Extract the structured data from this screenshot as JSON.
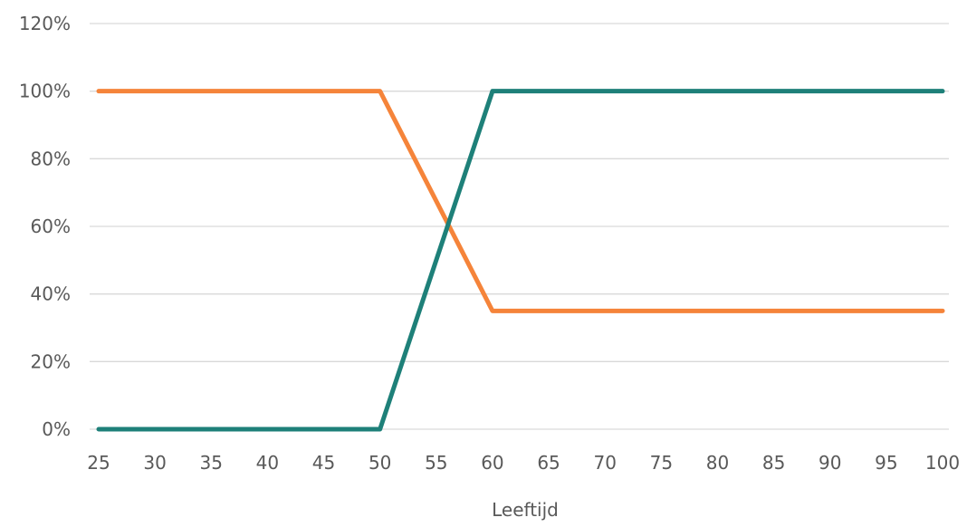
{
  "chart_data": {
    "type": "line",
    "title": "",
    "xlabel": "Leeftijd",
    "ylabel": "",
    "x": [
      25,
      30,
      35,
      40,
      45,
      50,
      55,
      60,
      65,
      70,
      75,
      80,
      85,
      90,
      95,
      100
    ],
    "x_tick_labels": [
      "25",
      "30",
      "35",
      "40",
      "45",
      "50",
      "55",
      "60",
      "65",
      "70",
      "75",
      "80",
      "85",
      "90",
      "95",
      "100"
    ],
    "xlim": [
      25,
      100
    ],
    "ylim": [
      0,
      120
    ],
    "y_ticks": [
      0,
      20,
      40,
      60,
      80,
      100,
      120
    ],
    "y_tick_labels": [
      "0%",
      "20%",
      "40%",
      "60%",
      "80%",
      "100%",
      "120%"
    ],
    "grid": true,
    "legend": "none",
    "series": [
      {
        "color": "#F5843A",
        "values": [
          100,
          100,
          100,
          100,
          100,
          100,
          67.5,
          35,
          35,
          35,
          35,
          35,
          35,
          35,
          35,
          35
        ]
      },
      {
        "color": "#1E8079",
        "values": [
          0,
          0,
          0,
          0,
          0,
          0,
          50,
          100,
          100,
          100,
          100,
          100,
          100,
          100,
          100,
          100
        ]
      }
    ]
  }
}
